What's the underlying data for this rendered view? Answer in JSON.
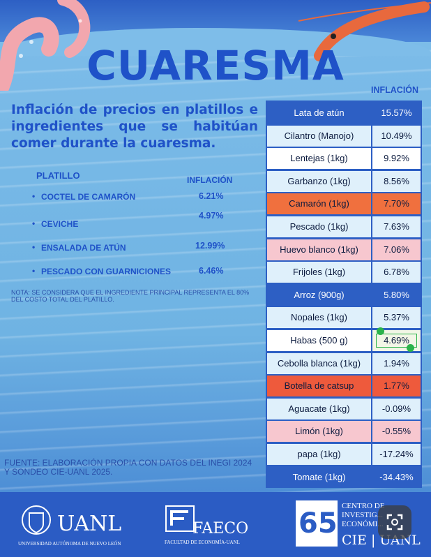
{
  "title": "CUARESMA",
  "top_column_label": "INFLACIÓN",
  "subtitle": "Inflación de precios en platillos e ingredientes que se habitúan comer durante la cuaresma.",
  "dishes": {
    "header_name": "PLATILLO",
    "header_value": "INFLACIÓN",
    "items": [
      {
        "bullet": "•",
        "name": "COCTEL DE CAMARÓN",
        "value": "6.21%"
      },
      {
        "bullet": "•",
        "name": "CEVICHE",
        "value": "4.97%"
      },
      {
        "bullet": "•",
        "name": "ENSALADA DE ATÚN",
        "value": "12.99%"
      },
      {
        "bullet": "•",
        "name": "PESCADO CON GUARNICIONES",
        "value": "6.46%"
      }
    ]
  },
  "note": "NOTA: SE CONSIDERA QUE EL INGREDIENTE PRINCIPAL REPRESENTA EL 80% DEL COSTO TOTAL DEL PLATILLO.",
  "source": "FUENTE: ELABORACIÓN PROPIA CON DATOS DEL INEGI 2024 Y SONDEO CIE-UANL 2025.",
  "colors": {
    "blue": "#2d5fc4",
    "light": "#dff0fb",
    "white": "#ffffff",
    "orange": "#f0703e",
    "pink": "#f7c7cf",
    "red_orange": "#ee5a3c"
  },
  "chart_data": {
    "type": "table",
    "column_header": "INFLACIÓN",
    "rows": [
      {
        "item": "Lata de atún",
        "value": 15.57,
        "label": "15.57%",
        "color": "#2d5fc4"
      },
      {
        "item": "Cilantro (Manojo)",
        "value": 10.49,
        "label": "10.49%",
        "color": "#dff0fb"
      },
      {
        "item": "Lentejas (1kg)",
        "value": 9.92,
        "label": "9.92%",
        "color": "#ffffff"
      },
      {
        "item": "Garbanzo (1kg)",
        "value": 8.56,
        "label": "8.56%",
        "color": "#dff0fb"
      },
      {
        "item": "Camarón (1kg)",
        "value": 7.7,
        "label": "7.70%",
        "color": "#f0703e"
      },
      {
        "item": "Pescado (1kg)",
        "value": 7.63,
        "label": "7.63%",
        "color": "#dff0fb"
      },
      {
        "item": "Huevo blanco (1kg)",
        "value": 7.06,
        "label": "7.06%",
        "color": "#f7c7cf"
      },
      {
        "item": "Frijoles (1kg)",
        "value": 6.78,
        "label": "6.78%",
        "color": "#dff0fb"
      },
      {
        "item": "Arroz (900g)",
        "value": 5.8,
        "label": "5.80%",
        "color": "#2d5fc4"
      },
      {
        "item": "Nopales (1kg)",
        "value": 5.37,
        "label": "5.37%",
        "color": "#dff0fb"
      },
      {
        "item": "Habas (500 g)",
        "value": 4.69,
        "label": "4.69%",
        "color": "#ffffff"
      },
      {
        "item": "Cebolla blanca (1kg)",
        "value": 1.94,
        "label": "1.94%",
        "color": "#dff0fb"
      },
      {
        "item": "Botella de catsup",
        "value": 1.77,
        "label": "1.77%",
        "color": "#ee5a3c"
      },
      {
        "item": "Aguacate (1kg)",
        "value": -0.09,
        "label": "-0.09%",
        "color": "#dff0fb"
      },
      {
        "item": "Limón (1kg)",
        "value": -0.55,
        "label": "-0.55%",
        "color": "#f7c7cf"
      },
      {
        "item": "papa (1kg)",
        "value": -17.24,
        "label": "-17.24%",
        "color": "#dff0fb"
      },
      {
        "item": "Tomate (1kg)",
        "value": -34.43,
        "label": "-34.43%",
        "color": "#2d5fc4"
      }
    ]
  },
  "logos": {
    "uanl": "UANL",
    "uanl_caption": "UNIVERSIDAD AUTÓNOMA DE NUEVO LEÓN",
    "faeco": "FAECO",
    "faeco_caption": "FACULTAD DE ECONOMÍA-UANL",
    "cie_number": "65",
    "cie_line1": "CENTRO DE",
    "cie_line2": "INVESTIG...",
    "cie_line3": "ECONÓMI...",
    "cie_name": "CIE | UANL"
  },
  "icons": [
    "octopus-illustration",
    "shrimp-illustration",
    "screenshot-lens-icon"
  ]
}
